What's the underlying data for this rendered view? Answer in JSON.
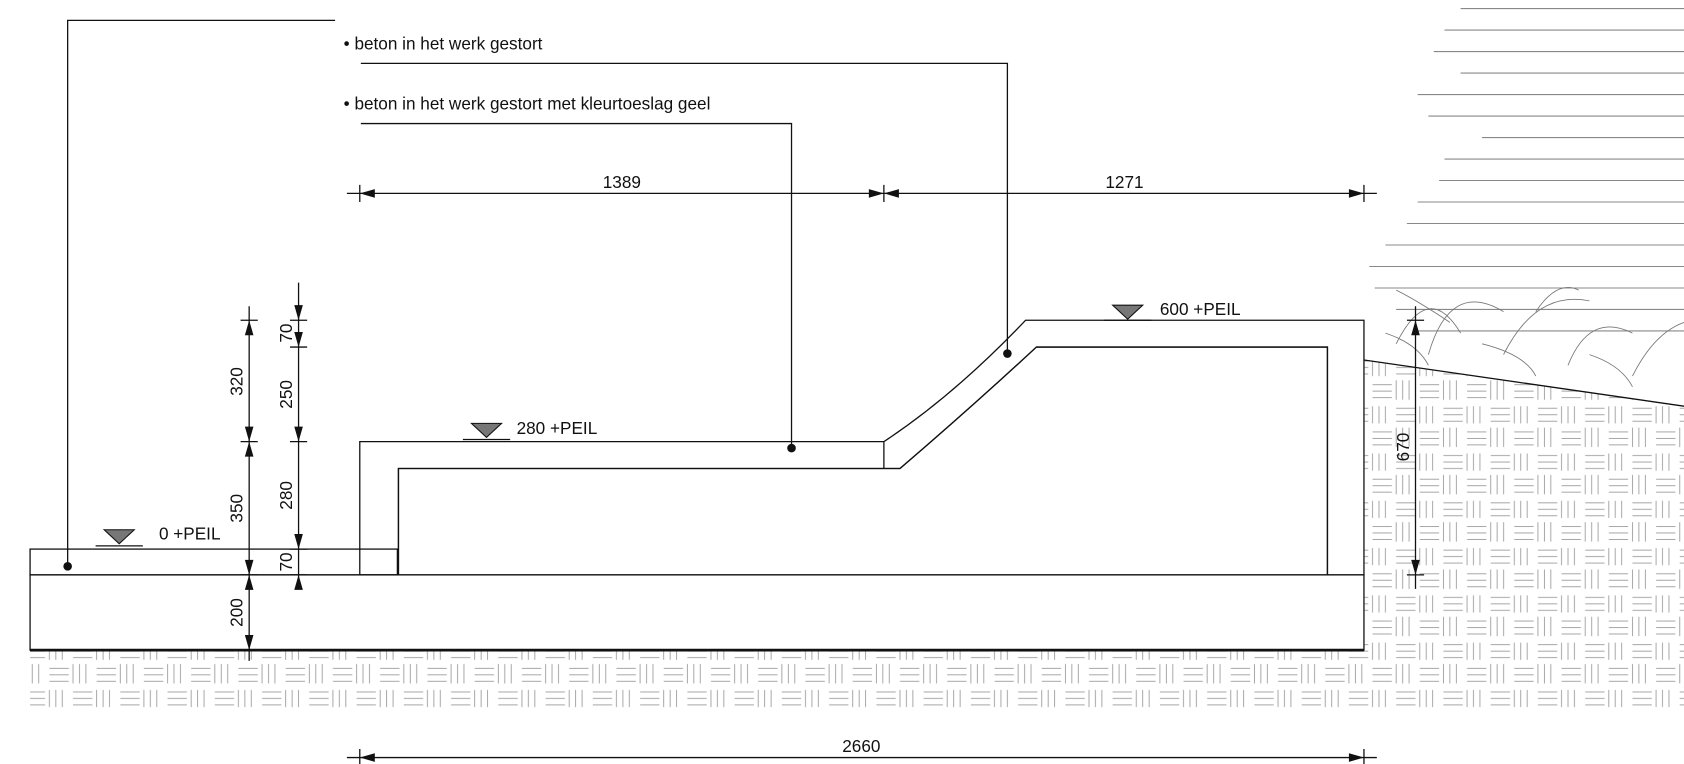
{
  "labels": {
    "concrete": "• beton in het werk gestort",
    "concrete_yellow": "• beton in het werk gestort met kleurtoeslag geel"
  },
  "levels": [
    "0 +PEIL",
    "280 +PEIL",
    "600 +PEIL"
  ],
  "dimensions": {
    "top_left": "1389",
    "top_right": "1271",
    "bottom": "2660",
    "outer_upper": "320",
    "outer_lower": "350",
    "foundation": "200",
    "inner_top": "70",
    "inner_upper": "250",
    "inner_middle": "280",
    "inner_bottom": "70",
    "right": "670"
  }
}
